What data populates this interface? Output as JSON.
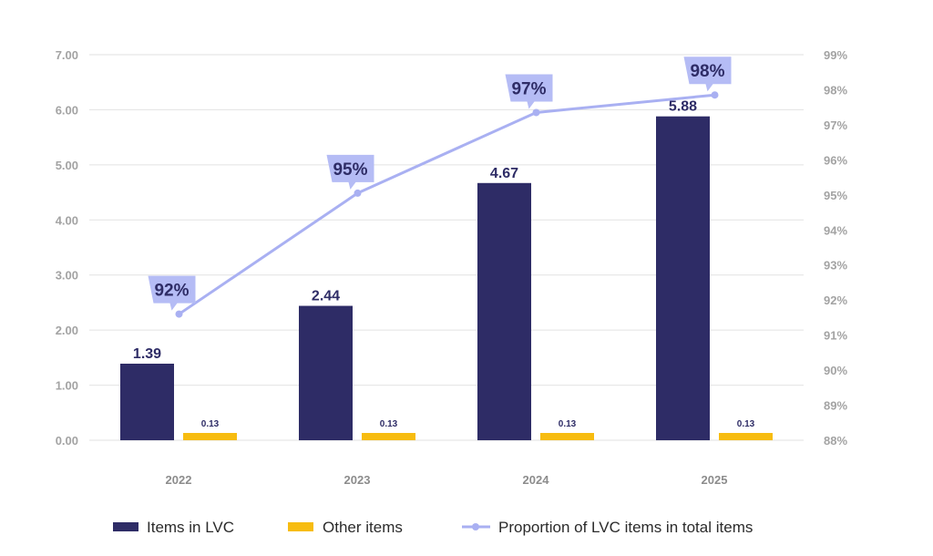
{
  "chart_data": {
    "type": "bar",
    "categories": [
      "2022",
      "2023",
      "2024",
      "2025"
    ],
    "series": [
      {
        "name": "Items in LVC",
        "type": "bar",
        "axis": "left",
        "values": [
          1.39,
          2.44,
          4.67,
          5.88
        ],
        "labels": [
          "1.39",
          "2.44",
          "4.67",
          "5.88"
        ]
      },
      {
        "name": "Other items",
        "type": "bar",
        "axis": "left",
        "values": [
          0.13,
          0.13,
          0.13,
          0.13
        ],
        "labels": [
          "0.13",
          "0.13",
          "0.13",
          "0.13"
        ]
      },
      {
        "name": "Proportion of LVC items in total items",
        "type": "line",
        "axis": "right",
        "values": [
          91.6,
          95.05,
          97.35,
          97.85
        ],
        "labels": [
          "92%",
          "95%",
          "97%",
          "98%"
        ]
      }
    ],
    "left_axis": {
      "ylim": [
        0,
        7
      ],
      "ticks": [
        "0.00",
        "1.00",
        "2.00",
        "3.00",
        "4.00",
        "5.00",
        "6.00",
        "7.00"
      ]
    },
    "right_axis": {
      "ylim": [
        88,
        99
      ],
      "ticks": [
        "88%",
        "89%",
        "90%",
        "91%",
        "92%",
        "93%",
        "94%",
        "95%",
        "96%",
        "97%",
        "98%",
        "99%"
      ]
    },
    "title": "",
    "xlabel": "",
    "ylabel": "",
    "grid": true,
    "legend": "bottom",
    "colors": {
      "lvc": "#2e2c66",
      "other": "#f7bc10",
      "line": "#a9b0f2",
      "label_box": "#b5bcf5",
      "grid": "#e2e2e2"
    }
  }
}
